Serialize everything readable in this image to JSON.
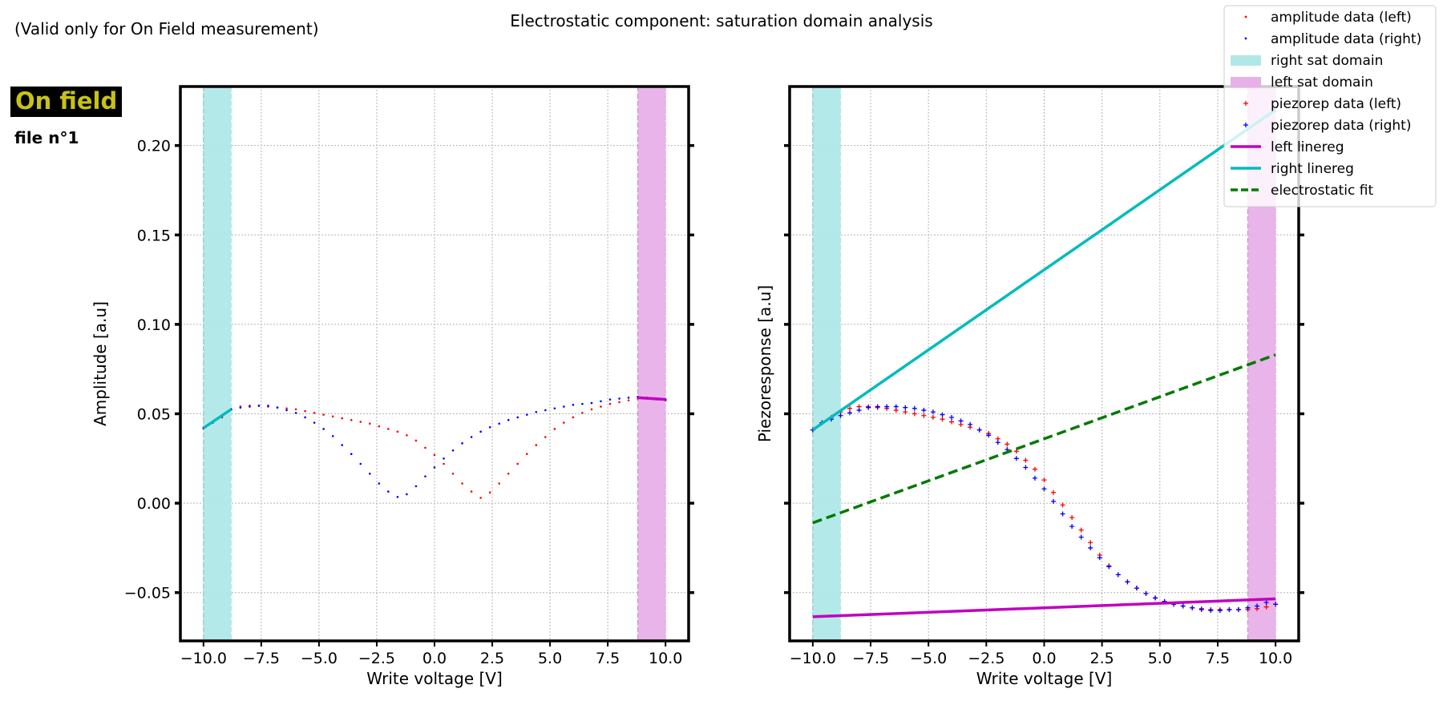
{
  "header": {
    "note": "(Valid only for On Field measurement)",
    "suptitle": "Electrostatic component: saturation domain analysis",
    "badge": "On field",
    "file_label": "file n°1"
  },
  "colors": {
    "left_data": "#ff0000",
    "right_data": "#0000ff",
    "right_sat_domain": "#b0e8e8",
    "left_sat_domain": "#e8b0e8",
    "left_linereg": "#c000c0",
    "right_linereg": "#00bcbc",
    "electrostatic_fit": "#007a00"
  },
  "legend": {
    "position": "top-right",
    "entries": [
      {
        "label": "amplitude data (left)",
        "symbol": "dot",
        "color": "#ff0000"
      },
      {
        "label": "amplitude data (right)",
        "symbol": "dot",
        "color": "#0000ff"
      },
      {
        "label": "right sat domain",
        "symbol": "patch",
        "color": "#b0e8e8"
      },
      {
        "label": "left sat domain",
        "symbol": "patch",
        "color": "#e8b0e8"
      },
      {
        "label": "piezorep data (left)",
        "symbol": "plus",
        "color": "#ff0000"
      },
      {
        "label": "piezorep data (right)",
        "symbol": "plus",
        "color": "#0000ff"
      },
      {
        "label": "left linereg",
        "symbol": "line",
        "color": "#c000c0"
      },
      {
        "label": "right linereg",
        "symbol": "line",
        "color": "#00bcbc"
      },
      {
        "label": "electrostatic fit",
        "symbol": "dash",
        "color": "#007a00"
      }
    ]
  },
  "chart_data": [
    {
      "type": "scatter",
      "xlabel": "Write voltage [V]",
      "ylabel": "Amplitude [a.u]",
      "xlim": [
        -11.0,
        11.0
      ],
      "ylim": [
        -0.077,
        0.233
      ],
      "xticks": [
        -10,
        -7.5,
        -5,
        -2.5,
        0,
        2.5,
        5,
        7.5,
        10
      ],
      "xtick_labels": [
        "−10.0",
        "−7.5",
        "−5.0",
        "−2.5",
        "0.0",
        "2.5",
        "5.0",
        "7.5",
        "10.0"
      ],
      "yticks": [
        -0.05,
        0,
        0.05,
        0.1,
        0.15,
        0.2
      ],
      "ytick_labels": [
        "−0.05",
        "0.00",
        "0.05",
        "0.10",
        "0.15",
        "0.20"
      ],
      "grid": true,
      "spans": [
        {
          "name": "right sat domain",
          "x0": -10.0,
          "x1": -8.8
        },
        {
          "name": "left sat domain",
          "x0": 8.8,
          "x1": 10.0
        }
      ],
      "lines": [
        {
          "name": "right linereg",
          "x": [
            -10.0,
            -8.8
          ],
          "y": [
            0.042,
            0.0525
          ]
        },
        {
          "name": "left linereg",
          "x": [
            8.8,
            10.0
          ],
          "y": [
            0.059,
            0.058
          ]
        }
      ],
      "series": [
        {
          "name": "amplitude data (left)",
          "x": [
            -10,
            -9.6,
            -9.2,
            -8.8,
            -8.4,
            -8,
            -7.6,
            -7.2,
            -6.8,
            -6.4,
            -6,
            -5.6,
            -5.2,
            -4.8,
            -4.4,
            -4,
            -3.6,
            -3.2,
            -2.8,
            -2.4,
            -2,
            -1.6,
            -1.2,
            -0.8,
            -0.4,
            0,
            0.4,
            0.8,
            1.2,
            1.6,
            2,
            2.4,
            2.8,
            3.2,
            3.6,
            4,
            4.4,
            4.8,
            5.2,
            5.6,
            6,
            6.4,
            6.8,
            7.2,
            7.6,
            8,
            8.4,
            8.8,
            9.2,
            9.6,
            10
          ],
          "y": [
            0.042,
            0.045,
            0.048,
            0.0525,
            0.054,
            0.0545,
            0.0545,
            0.054,
            0.0535,
            0.053,
            0.0525,
            0.0515,
            0.0505,
            0.0495,
            0.0485,
            0.0475,
            0.0465,
            0.0455,
            0.0445,
            0.043,
            0.0415,
            0.04,
            0.038,
            0.035,
            0.031,
            0.027,
            0.022,
            0.0165,
            0.011,
            0.0065,
            0.003,
            0.006,
            0.011,
            0.0165,
            0.022,
            0.0275,
            0.0325,
            0.037,
            0.0415,
            0.045,
            0.048,
            0.0505,
            0.0525,
            0.054,
            0.0555,
            0.0565,
            0.0575,
            0.0585,
            0.0585,
            0.058,
            0.0575
          ]
        },
        {
          "name": "amplitude data (right)",
          "x": [
            10,
            9.6,
            9.2,
            8.8,
            8.4,
            8,
            7.6,
            7.2,
            6.8,
            6.4,
            6,
            5.6,
            5.2,
            4.8,
            4.4,
            4,
            3.6,
            3.2,
            2.8,
            2.4,
            2,
            1.6,
            1.2,
            0.8,
            0.4,
            0,
            -0.4,
            -0.8,
            -1.2,
            -1.6,
            -2,
            -2.4,
            -2.8,
            -3.2,
            -3.6,
            -4,
            -4.4,
            -4.8,
            -5.2,
            -5.6,
            -6,
            -6.4,
            -6.8,
            -7.2,
            -7.6,
            -8,
            -8.4,
            -8.8,
            -9.2,
            -9.6,
            -10
          ],
          "y": [
            0.058,
            0.0585,
            0.059,
            0.0595,
            0.059,
            0.0585,
            0.058,
            0.057,
            0.056,
            0.0555,
            0.055,
            0.054,
            0.053,
            0.052,
            0.051,
            0.0495,
            0.048,
            0.0465,
            0.0445,
            0.0425,
            0.04,
            0.037,
            0.0335,
            0.0295,
            0.025,
            0.02,
            0.015,
            0.0095,
            0.005,
            0.0035,
            0.0065,
            0.011,
            0.0165,
            0.022,
            0.0275,
            0.0325,
            0.0375,
            0.0415,
            0.045,
            0.048,
            0.0505,
            0.052,
            0.0535,
            0.0545,
            0.0545,
            0.054,
            0.0535,
            0.0525,
            0.0485,
            0.045,
            0.042
          ]
        }
      ]
    },
    {
      "type": "scatter",
      "xlabel": "Write voltage [V]",
      "ylabel": "Piezoresponse [a.u]",
      "xlim": [
        -11.0,
        11.0
      ],
      "ylim": [
        -0.077,
        0.233
      ],
      "xticks": [
        -10,
        -7.5,
        -5,
        -2.5,
        0,
        2.5,
        5,
        7.5,
        10
      ],
      "xtick_labels": [
        "−10.0",
        "−7.5",
        "−5.0",
        "−2.5",
        "0.0",
        "2.5",
        "5.0",
        "7.5",
        "10.0"
      ],
      "yticks": [
        -0.05,
        0,
        0.05,
        0.1,
        0.15,
        0.2
      ],
      "ytick_labels": [],
      "grid": true,
      "spans": [
        {
          "name": "right sat domain",
          "x0": -10.0,
          "x1": -8.8
        },
        {
          "name": "left sat domain",
          "x0": 8.8,
          "x1": 10.0
        }
      ],
      "lines": [
        {
          "name": "right linereg",
          "x": [
            -10.0,
            10.0
          ],
          "y": [
            0.041,
            0.22
          ]
        },
        {
          "name": "left linereg",
          "x": [
            -10.0,
            10.0
          ],
          "y": [
            -0.0635,
            -0.0535
          ]
        },
        {
          "name": "electrostatic fit",
          "x": [
            -10.0,
            10.0
          ],
          "y": [
            -0.011,
            0.083
          ]
        }
      ],
      "series": [
        {
          "name": "piezorep data (left)",
          "x": [
            -10,
            -9.6,
            -9.2,
            -8.8,
            -8.4,
            -8,
            -7.6,
            -7.2,
            -6.8,
            -6.4,
            -6,
            -5.6,
            -5.2,
            -4.8,
            -4.4,
            -4,
            -3.6,
            -3.2,
            -2.8,
            -2.4,
            -2,
            -1.6,
            -1.2,
            -0.8,
            -0.4,
            0,
            0.4,
            0.8,
            1.2,
            1.6,
            2,
            2.4,
            2.8,
            3.2,
            3.6,
            4,
            4.4,
            4.8,
            5.2,
            5.6,
            6,
            6.4,
            6.8,
            7.2,
            7.6,
            8,
            8.4,
            8.8,
            9.2,
            9.6,
            10
          ],
          "y": [
            0.041,
            0.045,
            0.048,
            0.051,
            0.053,
            0.054,
            0.054,
            0.0535,
            0.053,
            0.052,
            0.051,
            0.05,
            0.049,
            0.048,
            0.047,
            0.0455,
            0.044,
            0.0425,
            0.041,
            0.039,
            0.036,
            0.033,
            0.029,
            0.024,
            0.019,
            0.013,
            0.006,
            -0.001,
            -0.008,
            -0.015,
            -0.022,
            -0.029,
            -0.035,
            -0.04,
            -0.044,
            -0.0475,
            -0.0505,
            -0.053,
            -0.055,
            -0.0565,
            -0.0575,
            -0.0585,
            -0.059,
            -0.0595,
            -0.0595,
            -0.0595,
            -0.0595,
            -0.0595,
            -0.059,
            -0.058,
            -0.0565
          ]
        },
        {
          "name": "piezorep data (right)",
          "x": [
            10,
            9.6,
            9.2,
            8.8,
            8.4,
            8,
            7.6,
            7.2,
            6.8,
            6.4,
            6,
            5.6,
            5.2,
            4.8,
            4.4,
            4,
            3.6,
            3.2,
            2.8,
            2.4,
            2,
            1.6,
            1.2,
            0.8,
            0.4,
            0,
            -0.4,
            -0.8,
            -1.2,
            -1.6,
            -2,
            -2.4,
            -2.8,
            -3.2,
            -3.6,
            -4,
            -4.4,
            -4.8,
            -5.2,
            -5.6,
            -6,
            -6.4,
            -6.8,
            -7.2,
            -7.6,
            -8,
            -8.4,
            -8.8,
            -9.2,
            -9.6,
            -10
          ],
          "y": [
            -0.0565,
            -0.0555,
            -0.0575,
            -0.0585,
            -0.0595,
            -0.0595,
            -0.06,
            -0.06,
            -0.0595,
            -0.0585,
            -0.0575,
            -0.0565,
            -0.055,
            -0.053,
            -0.0505,
            -0.0475,
            -0.044,
            -0.04,
            -0.0355,
            -0.0305,
            -0.025,
            -0.019,
            -0.013,
            -0.006,
            0.001,
            0.008,
            0.014,
            0.02,
            0.025,
            0.03,
            0.034,
            0.038,
            0.041,
            0.044,
            0.046,
            0.048,
            0.0495,
            0.051,
            0.052,
            0.053,
            0.0535,
            0.054,
            0.054,
            0.054,
            0.0535,
            0.052,
            0.0505,
            0.049,
            0.047,
            0.045,
            0.041
          ]
        }
      ]
    }
  ]
}
